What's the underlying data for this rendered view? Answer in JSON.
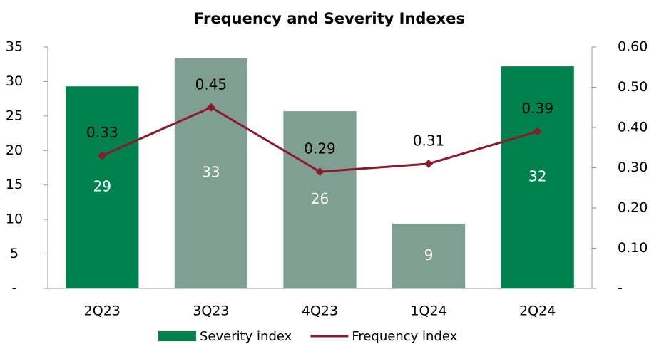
{
  "chart_data": {
    "type": "bar_line",
    "title": "Frequency and Severity Indexes",
    "categories": [
      "2Q23",
      "3Q23",
      "4Q23",
      "1Q24",
      "2Q24"
    ],
    "series": [
      {
        "name": "Severity index",
        "type": "bar",
        "color": "#00824f",
        "colors": [
          "#00824f",
          "#7f9f93",
          "#7f9f93",
          "#7f9f93",
          "#00824f"
        ],
        "values": [
          29.3,
          33.4,
          25.7,
          9.4,
          32.2
        ],
        "value_labels": [
          "29",
          "33",
          "26",
          "9",
          "32"
        ]
      },
      {
        "name": "Frequency index",
        "type": "line",
        "axis": "y2",
        "color": "#8b1a2b",
        "values": [
          0.33,
          0.45,
          0.29,
          0.31,
          0.39
        ]
      }
    ],
    "ylim": [
      0,
      35
    ],
    "yticks": [
      {
        "value": 0,
        "label": "-"
      },
      5,
      10,
      15,
      20,
      25,
      30,
      35
    ],
    "y2lim": [
      0,
      0.6
    ],
    "y2ticks": [
      {
        "value": 0,
        "label": "-"
      },
      {
        "value": 0.1,
        "label": "0.10"
      },
      {
        "value": 0.2,
        "label": "0.20"
      },
      {
        "value": 0.3,
        "label": "0.30"
      },
      {
        "value": 0.4,
        "label": "0.40"
      },
      {
        "value": 0.5,
        "label": "0.50"
      },
      {
        "value": 0.6,
        "label": "0.60"
      }
    ],
    "legend": "bottom"
  }
}
